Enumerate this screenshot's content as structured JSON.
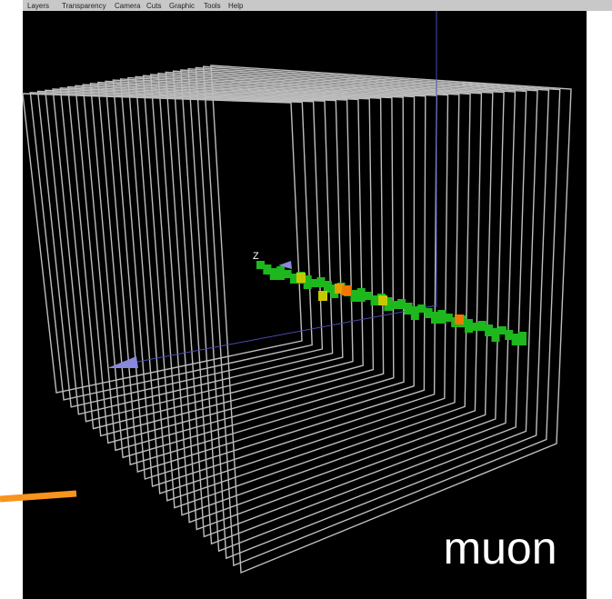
{
  "menu": {
    "items": [
      "Layers",
      "Transparency",
      "Camera",
      "Cuts",
      "Graphic",
      "Tools",
      "Help"
    ]
  },
  "labels": {
    "axis": "Z",
    "particle": "muon"
  }
}
